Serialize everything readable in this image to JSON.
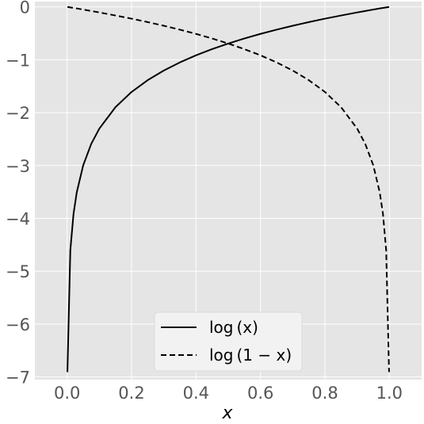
{
  "chart_data": {
    "type": "line",
    "xlabel": "x",
    "ylabel": "",
    "xlim": [
      -0.1,
      1.1
    ],
    "ylim": [
      -7.05,
      0.1
    ],
    "xticks": [
      0.0,
      0.2,
      0.4,
      0.6,
      0.8,
      1.0
    ],
    "xtick_labels": [
      "0.0",
      "0.2",
      "0.4",
      "0.6",
      "0.8",
      "1.0"
    ],
    "yticks": [
      0,
      -1,
      -2,
      -3,
      -4,
      -5,
      -6,
      -7
    ],
    "ytick_labels": [
      "0",
      "−1",
      "−2",
      "−3",
      "−4",
      "−5",
      "−6",
      "−7"
    ],
    "grid": true,
    "legend_position": "bottom-center",
    "colors": {
      "background": "#e5e5e5",
      "grid": "#ffffff",
      "line": "#000000"
    },
    "x": [
      0.001,
      0.01,
      0.02,
      0.03,
      0.05,
      0.075,
      0.1,
      0.15,
      0.2,
      0.25,
      0.3,
      0.35,
      0.4,
      0.45,
      0.5,
      0.55,
      0.6,
      0.65,
      0.7,
      0.75,
      0.8,
      0.85,
      0.9,
      0.925,
      0.95,
      0.97,
      0.98,
      0.99,
      0.999
    ],
    "series": [
      {
        "name": "log(x)",
        "style": "solid",
        "values": [
          -6.908,
          -4.605,
          -3.912,
          -3.507,
          -2.996,
          -2.59,
          -2.303,
          -1.897,
          -1.609,
          -1.386,
          -1.204,
          -1.05,
          -0.916,
          -0.799,
          -0.693,
          -0.598,
          -0.511,
          -0.431,
          -0.357,
          -0.288,
          -0.223,
          -0.163,
          -0.105,
          -0.078,
          -0.051,
          -0.03,
          -0.02,
          -0.01,
          -0.001
        ]
      },
      {
        "name": "log(1−x)",
        "style": "dashed",
        "values": [
          -0.001,
          -0.01,
          -0.02,
          -0.03,
          -0.051,
          -0.078,
          -0.105,
          -0.163,
          -0.223,
          -0.288,
          -0.357,
          -0.431,
          -0.511,
          -0.598,
          -0.693,
          -0.799,
          -0.916,
          -1.05,
          -1.204,
          -1.386,
          -1.609,
          -1.897,
          -2.303,
          -2.59,
          -2.996,
          -3.507,
          -3.912,
          -4.605,
          -6.908
        ]
      }
    ],
    "legend": [
      {
        "label": "log (x)",
        "style": "solid"
      },
      {
        "label": "log (1 − x)",
        "style": "dashed"
      }
    ]
  }
}
